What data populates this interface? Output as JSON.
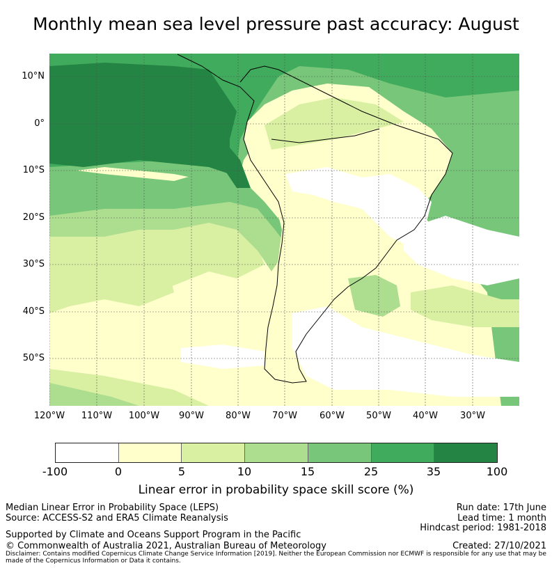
{
  "title": "Monthly mean sea level pressure past accuracy: August",
  "map": {
    "lat_labels": [
      "10°N",
      "0°",
      "10°S",
      "20°S",
      "30°S",
      "40°S",
      "50°S"
    ],
    "lon_labels": [
      "120°W",
      "110°W",
      "100°W",
      "90°W",
      "80°W",
      "70°W",
      "60°W",
      "50°W",
      "40°W",
      "30°W"
    ],
    "colors": {
      "c0": "#ffffff",
      "c5": "#ffffcc",
      "c10": "#d9f0a3",
      "c15": "#addd8e",
      "c25": "#78c679",
      "c35": "#41ab5d",
      "c100": "#238443"
    }
  },
  "colorbar": {
    "ticks": [
      "-100",
      "0",
      "5",
      "10",
      "15",
      "25",
      "35",
      "100"
    ],
    "colors": [
      "#ffffff",
      "#ffffcc",
      "#d9f0a3",
      "#addd8e",
      "#78c679",
      "#41ab5d",
      "#238443"
    ],
    "label": "Linear error in probability space skill score (%)"
  },
  "footer": {
    "left1": "Median Linear Error in Probability Space (LEPS)",
    "left2": "Source: ACCESS-S2 and ERA5 Climate Reanalysis",
    "left3": "Supported by Climate and Oceans Support Program in the Pacific",
    "left4": "© Commonwealth of Australia 2021, Australian Bureau of Meteorology",
    "right1": "Run date: 17th June",
    "right2": "Lead time: 1 month",
    "right3": "Hindcast period: 1981-2018",
    "right4": "Created: 27/10/2021",
    "disclaimer": "Disclaimer: Contains modified Copernicus Climate Change Service Information [2019]. Neither the European Commission nor ECMWF is responsible for any use that may be made of the Copernicus Information or Data it contains."
  }
}
